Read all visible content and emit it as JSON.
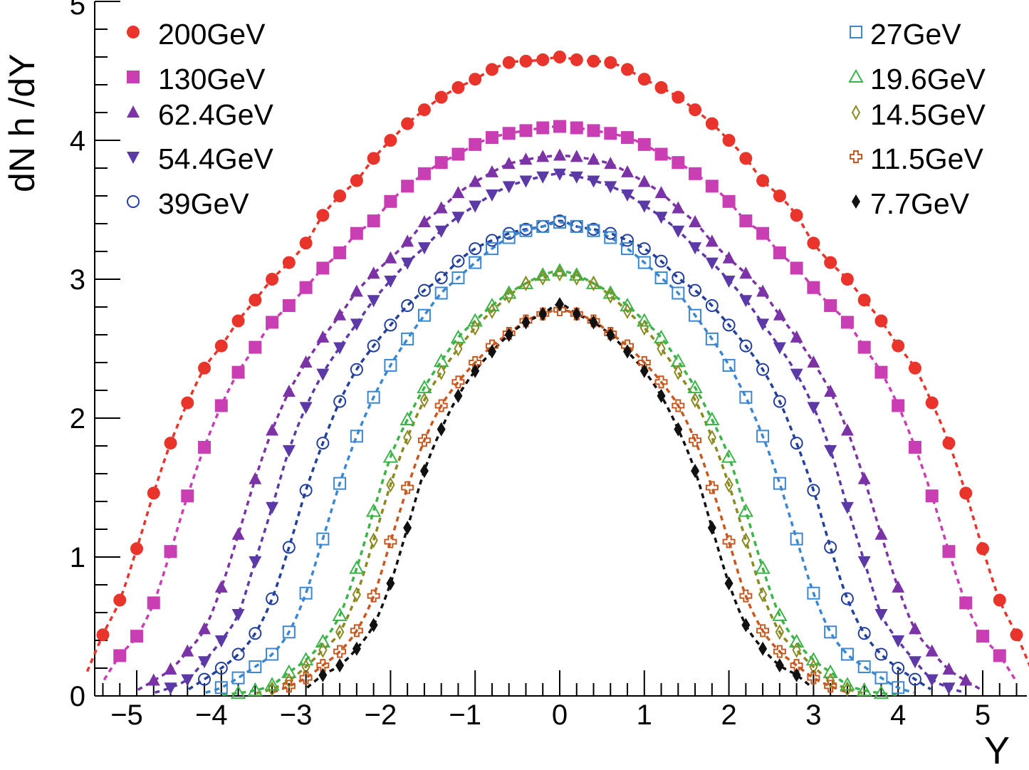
{
  "chart_data": {
    "type": "scatter",
    "title": "",
    "xlabel": "Y",
    "ylabel": "dN h /dY",
    "xlim": [
      -5.5,
      5.5
    ],
    "ylim": [
      0,
      5
    ],
    "x_ticks": [
      "−5",
      "−4",
      "−3",
      "−2",
      "−1",
      "0",
      "1",
      "2",
      "3",
      "4",
      "5"
    ],
    "x_tick_values": [
      -5,
      -4,
      -3,
      -2,
      -1,
      0,
      1,
      2,
      3,
      4,
      5
    ],
    "y_ticks": [
      "0",
      "1",
      "2",
      "3",
      "4",
      "5"
    ],
    "y_tick_values": [
      0,
      1,
      2,
      3,
      4,
      5
    ],
    "grid": false,
    "legend_placement": [
      "top-left",
      "top-right"
    ],
    "series": [
      {
        "name": "200GeV",
        "color": "#e8342a",
        "marker": "filled-circle",
        "x_start": -5.4,
        "x_step": 0.2,
        "values": [
          0.44,
          0.69,
          1.06,
          1.46,
          1.82,
          2.11,
          2.36,
          2.52,
          2.7,
          2.85,
          3.0,
          3.12,
          3.26,
          3.46,
          3.6,
          3.71,
          3.87,
          4.0,
          4.12,
          4.22,
          4.31,
          4.38,
          4.44,
          4.51,
          4.56,
          4.57,
          4.58,
          4.6,
          4.58,
          4.57,
          4.56,
          4.51,
          4.44,
          4.38,
          4.31,
          4.22,
          4.12,
          4.0,
          3.87,
          3.71,
          3.6,
          3.46,
          3.26,
          3.12,
          3.0,
          2.85,
          2.7,
          2.52,
          2.36,
          2.11,
          1.82,
          1.46,
          1.06,
          0.69,
          0.44
        ]
      },
      {
        "name": "130GeV",
        "color": "#c93fb3",
        "marker": "filled-square",
        "x_start": -5.2,
        "x_step": 0.2,
        "values": [
          0.29,
          0.43,
          0.67,
          1.04,
          1.44,
          1.79,
          2.09,
          2.33,
          2.51,
          2.69,
          2.81,
          2.94,
          3.08,
          3.19,
          3.33,
          3.42,
          3.56,
          3.67,
          3.76,
          3.84,
          3.9,
          3.97,
          4.02,
          4.05,
          4.07,
          4.09,
          4.1,
          4.09,
          4.07,
          4.05,
          4.02,
          3.97,
          3.9,
          3.84,
          3.76,
          3.67,
          3.56,
          3.42,
          3.33,
          3.19,
          3.08,
          2.94,
          2.81,
          2.69,
          2.51,
          2.33,
          2.09,
          1.79,
          1.44,
          1.04,
          0.67,
          0.43,
          0.29
        ]
      },
      {
        "name": "62.4GeV",
        "color": "#7b33a6",
        "marker": "filled-triangle-up",
        "x_start": -4.8,
        "x_step": 0.2,
        "values": [
          0.11,
          0.19,
          0.32,
          0.48,
          0.78,
          1.16,
          1.56,
          1.91,
          2.19,
          2.4,
          2.58,
          2.74,
          2.91,
          3.04,
          3.15,
          3.27,
          3.41,
          3.51,
          3.62,
          3.7,
          3.77,
          3.83,
          3.86,
          3.88,
          3.89,
          3.88,
          3.86,
          3.83,
          3.77,
          3.7,
          3.62,
          3.51,
          3.41,
          3.27,
          3.15,
          3.04,
          2.91,
          2.74,
          2.58,
          2.4,
          2.19,
          1.91,
          1.56,
          1.16,
          0.78,
          0.48,
          0.32,
          0.19,
          0.11
        ]
      },
      {
        "name": "54.4GeV",
        "color": "#5b3aa8",
        "marker": "filled-triangle-down",
        "x_start": -4.6,
        "x_step": 0.2,
        "values": [
          0.06,
          0.12,
          0.25,
          0.4,
          0.59,
          0.97,
          1.36,
          1.77,
          2.08,
          2.32,
          2.51,
          2.68,
          2.85,
          2.99,
          3.12,
          3.23,
          3.35,
          3.45,
          3.53,
          3.61,
          3.67,
          3.71,
          3.74,
          3.76,
          3.74,
          3.71,
          3.67,
          3.61,
          3.53,
          3.45,
          3.35,
          3.23,
          3.12,
          2.99,
          2.85,
          2.68,
          2.51,
          2.32,
          2.08,
          1.77,
          1.36,
          0.97,
          0.59,
          0.4,
          0.25,
          0.12,
          0.06
        ]
      },
      {
        "name": "39GeV",
        "color": "#23409c",
        "marker": "open-circle",
        "x_start": -4.2,
        "x_step": 0.2,
        "values": [
          0.12,
          0.2,
          0.3,
          0.45,
          0.7,
          1.07,
          1.48,
          1.82,
          2.12,
          2.35,
          2.52,
          2.67,
          2.81,
          2.92,
          3.01,
          3.13,
          3.22,
          3.28,
          3.33,
          3.36,
          3.38,
          3.42,
          3.38,
          3.36,
          3.33,
          3.28,
          3.22,
          3.13,
          3.01,
          2.92,
          2.81,
          2.67,
          2.52,
          2.35,
          2.12,
          1.82,
          1.48,
          1.07,
          0.7,
          0.45,
          0.3,
          0.2,
          0.12
        ]
      },
      {
        "name": "27GeV",
        "color": "#3b87d1",
        "marker": "open-square",
        "x_start": -4.0,
        "x_step": 0.2,
        "values": [
          0.06,
          0.13,
          0.21,
          0.3,
          0.46,
          0.74,
          1.13,
          1.53,
          1.87,
          2.15,
          2.38,
          2.57,
          2.74,
          2.9,
          3.01,
          3.12,
          3.22,
          3.3,
          3.35,
          3.38,
          3.41,
          3.38,
          3.35,
          3.3,
          3.22,
          3.12,
          3.01,
          2.9,
          2.74,
          2.57,
          2.38,
          2.15,
          1.87,
          1.53,
          1.13,
          0.74,
          0.46,
          0.3,
          0.21,
          0.13,
          0.06
        ]
      },
      {
        "name": "19.6GeV",
        "color": "#3cb44a",
        "marker": "open-triangle-up",
        "x_start": -3.8,
        "x_step": 0.2,
        "values": [
          0.02,
          0.04,
          0.08,
          0.17,
          0.26,
          0.39,
          0.58,
          0.92,
          1.33,
          1.72,
          1.99,
          2.22,
          2.41,
          2.58,
          2.7,
          2.81,
          2.9,
          2.97,
          3.03,
          3.06,
          3.03,
          2.97,
          2.9,
          2.81,
          2.7,
          2.58,
          2.41,
          2.22,
          1.99,
          1.72,
          1.33,
          0.92,
          0.58,
          0.39,
          0.26,
          0.17,
          0.08,
          0.04,
          0.02
        ]
      },
      {
        "name": "14.5GeV",
        "color": "#8b8a22",
        "marker": "open-diamond",
        "x_start": -3.4,
        "x_step": 0.2,
        "values": [
          0.05,
          0.11,
          0.21,
          0.33,
          0.46,
          0.73,
          1.12,
          1.52,
          1.86,
          2.13,
          2.33,
          2.5,
          2.65,
          2.77,
          2.88,
          2.97,
          3.01,
          3.04,
          3.01,
          2.97,
          2.88,
          2.77,
          2.65,
          2.5,
          2.33,
          2.13,
          1.86,
          1.52,
          1.12,
          0.73,
          0.46,
          0.33,
          0.21,
          0.11,
          0.05
        ]
      },
      {
        "name": "11.5GeV",
        "color": "#c9581f",
        "marker": "open-cross",
        "x_start": -3.2,
        "x_step": 0.2,
        "values": [
          0.07,
          0.13,
          0.22,
          0.32,
          0.47,
          0.72,
          1.11,
          1.5,
          1.84,
          2.09,
          2.26,
          2.4,
          2.52,
          2.61,
          2.7,
          2.75,
          2.78,
          2.75,
          2.7,
          2.61,
          2.52,
          2.4,
          2.26,
          2.09,
          1.84,
          1.5,
          1.11,
          0.72,
          0.47,
          0.32,
          0.22,
          0.13,
          0.07
        ]
      },
      {
        "name": "7.7GeV",
        "color": "#111111",
        "marker": "filled-diamond",
        "x_start": -2.8,
        "x_step": 0.2,
        "values": [
          0.15,
          0.22,
          0.34,
          0.51,
          0.81,
          1.21,
          1.62,
          1.92,
          2.16,
          2.34,
          2.48,
          2.6,
          2.69,
          2.75,
          2.82,
          2.75,
          2.69,
          2.6,
          2.48,
          2.34,
          2.16,
          1.92,
          1.62,
          1.21,
          0.81,
          0.51,
          0.34,
          0.22,
          0.15
        ]
      }
    ]
  }
}
